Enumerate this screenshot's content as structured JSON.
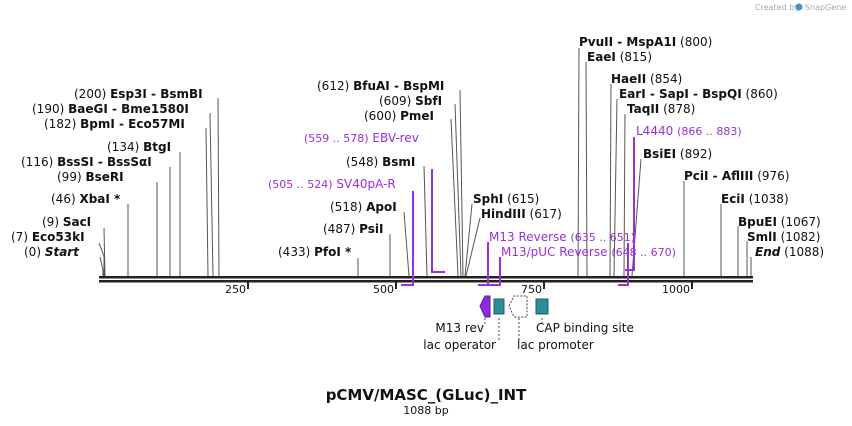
{
  "credit": {
    "text": "Created by",
    "brand": "SnapGene"
  },
  "title": "pCMV/MASC_(GLuc)_INT",
  "length_label": "1088 bp",
  "ticks": [
    "250",
    "500",
    "750",
    "1000"
  ],
  "sites": [
    {
      "pos": "(0)",
      "name": "Start"
    },
    {
      "pos": "(7)",
      "name": "Eco53kI"
    },
    {
      "pos": "(9)",
      "name": "SacI"
    },
    {
      "pos": "(46)",
      "name": "XbaI *"
    },
    {
      "pos": "(99)",
      "name": "BseRI"
    },
    {
      "pos": "(116)",
      "name": "BssSI  -  BssSαI"
    },
    {
      "pos": "(134)",
      "name": "BtgI"
    },
    {
      "pos": "(182)",
      "name": "BpmI  -  Eco57MI"
    },
    {
      "pos": "(190)",
      "name": "BaeGI  -  Bme1580I"
    },
    {
      "pos": "(200)",
      "name": "Esp3I  -  BsmBI"
    },
    {
      "pos": "(433)",
      "name": "PfoI *"
    },
    {
      "pos": "(487)",
      "name": "PsiI"
    },
    {
      "pos": "(518)",
      "name": "ApoI"
    },
    {
      "pos": "(548)",
      "name": "BsmI"
    },
    {
      "pos": "(600)",
      "name": "PmeI"
    },
    {
      "pos": "(609)",
      "name": "SbfI"
    },
    {
      "pos": "(612)",
      "name": "BfuAI  -  BspMI"
    },
    {
      "pos": "(615)",
      "name": "SphI"
    },
    {
      "pos": "(617)",
      "name": "HindIII"
    },
    {
      "pos": "(800)",
      "name": "PvuII  -  MspA1I"
    },
    {
      "pos": "(815)",
      "name": "EaeI"
    },
    {
      "pos": "(854)",
      "name": "HaeII"
    },
    {
      "pos": "(860)",
      "name": "EarI  -  SapI  -  BspQI"
    },
    {
      "pos": "(878)",
      "name": "TaqII"
    },
    {
      "pos": "(892)",
      "name": "BsiEI"
    },
    {
      "pos": "(976)",
      "name": "PciI  -  AflIII"
    },
    {
      "pos": "(1038)",
      "name": "EciI"
    },
    {
      "pos": "(1067)",
      "name": "BpuEI"
    },
    {
      "pos": "(1082)",
      "name": "SmlI"
    },
    {
      "pos": "(1088)",
      "name": "End"
    }
  ],
  "primers": [
    {
      "range": "(559 .. 578)",
      "name": "EBV-rev"
    },
    {
      "range": "(505 .. 524)",
      "name": "SV40pA-R"
    },
    {
      "range": "(866 .. 883)",
      "name": "L4440"
    },
    {
      "range": "(635 .. 651)",
      "name": "M13 Reverse"
    },
    {
      "range": "(648 .. 670)",
      "name": "M13/pUC Reverse"
    }
  ],
  "features": [
    "M13 rev",
    "lac operator",
    "lac promoter",
    "CAP binding site"
  ],
  "colors": {
    "primer": "#9b30d9",
    "feature_purple": "#8a2be2",
    "feature_teal": "#2e8b9a",
    "line": "#555555"
  }
}
